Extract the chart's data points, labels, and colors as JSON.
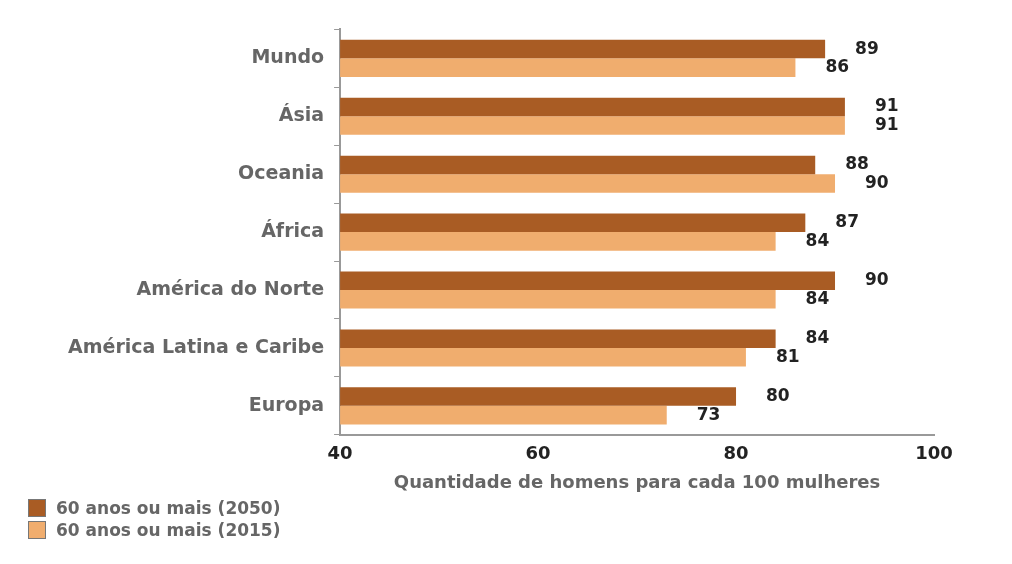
{
  "chart_data": {
    "type": "bar",
    "orientation": "horizontal",
    "xlabel": "Quantidade de homens para cada 100 mulheres",
    "categories": [
      "Mundo",
      "Ásia",
      "Oceania",
      "África",
      "América do Norte",
      "América Latina e Caribe",
      "Europa"
    ],
    "series": [
      {
        "name": "60 anos ou mais (2050)",
        "color": "#a95c24",
        "values": [
          89,
          91,
          88,
          87,
          90,
          84,
          80
        ]
      },
      {
        "name": "60 anos ou mais (2015)",
        "color": "#f0ad6e",
        "values": [
          86,
          91,
          90,
          84,
          84,
          81,
          73
        ]
      }
    ],
    "xlim": [
      40,
      100
    ],
    "xticks": [
      40,
      60,
      80,
      100
    ],
    "grid": false,
    "legend": "bottom left",
    "data_labels": true
  }
}
